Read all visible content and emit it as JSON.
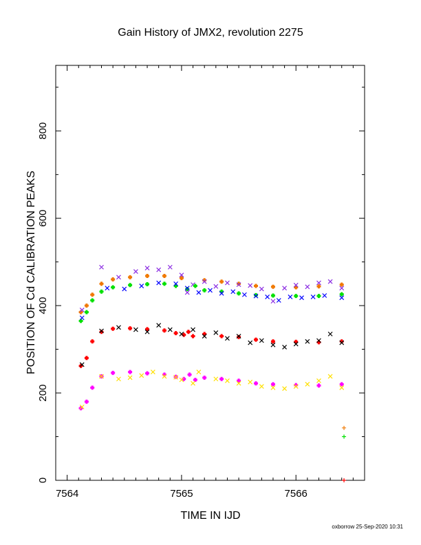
{
  "chart_data": {
    "type": "scatter",
    "title": "Gain History of JMX2, revolution 2275",
    "xlabel": "TIME IN IJD",
    "ylabel": "POSITION OF Cd CALIBRATION PEAKS",
    "xlim": [
      7563.9,
      7566.6
    ],
    "ylim": [
      0,
      950
    ],
    "x_ticks": [
      7564,
      7565,
      7566
    ],
    "x_tick_labels": [
      "7564",
      "7565",
      "7566"
    ],
    "y_ticks": [
      0,
      200,
      400,
      600,
      800
    ],
    "y_tick_labels": [
      "0",
      "200",
      "400",
      "600",
      "800"
    ],
    "grid": false,
    "legend": "none",
    "series": [
      {
        "color": "#f07800",
        "marker": "plus",
        "role": "fit",
        "x": [
          7564.12,
          7564.17,
          7564.22,
          7564.3,
          7564.4,
          7564.55,
          7564.7,
          7564.85,
          7565.0,
          7565.2,
          7565.35,
          7565.5,
          7565.65,
          7565.8,
          7566.0,
          7566.2,
          7566.4
        ],
        "y": [
          385,
          400,
          425,
          450,
          460,
          465,
          468,
          468,
          463,
          458,
          455,
          450,
          445,
          443,
          442,
          444,
          448
        ]
      },
      {
        "color": "#8a2be2",
        "marker": "x",
        "role": "raw",
        "x": [
          7564.13,
          7564.3,
          7564.45,
          7564.6,
          7564.7,
          7564.8,
          7564.9,
          7565.0,
          7565.05,
          7565.1,
          7565.2,
          7565.3,
          7565.4,
          7565.5,
          7565.6,
          7565.7,
          7565.8,
          7565.9,
          7566.0,
          7566.1,
          7566.2,
          7566.3,
          7566.4
        ],
        "y": [
          390,
          488,
          465,
          478,
          486,
          482,
          488,
          470,
          430,
          448,
          455,
          444,
          452,
          448,
          446,
          438,
          410,
          440,
          447,
          443,
          452,
          455,
          440
        ]
      },
      {
        "color": "#00e000",
        "marker": "plus",
        "role": "fit",
        "x": [
          7564.12,
          7564.17,
          7564.22,
          7564.3,
          7564.4,
          7564.55,
          7564.7,
          7564.85,
          7564.95,
          7565.05,
          7565.12,
          7565.2,
          7565.35,
          7565.5,
          7565.65,
          7565.8,
          7566.0,
          7566.2,
          7566.4
        ],
        "y": [
          365,
          385,
          412,
          432,
          442,
          447,
          449,
          450,
          445,
          438,
          445,
          435,
          432,
          428,
          424,
          423,
          422,
          422,
          426
        ]
      },
      {
        "color": "#0000ff",
        "marker": "x",
        "role": "raw",
        "x": [
          7564.13,
          7564.35,
          7564.5,
          7564.65,
          7564.8,
          7564.95,
          7565.05,
          7565.15,
          7565.25,
          7565.35,
          7565.45,
          7565.55,
          7565.65,
          7565.75,
          7565.85,
          7565.95,
          7566.05,
          7566.15,
          7566.25,
          7566.4
        ],
        "y": [
          372,
          440,
          438,
          445,
          452,
          450,
          440,
          430,
          435,
          428,
          432,
          425,
          422,
          420,
          412,
          420,
          418,
          420,
          423,
          418
        ]
      },
      {
        "color": "#ff0000",
        "marker": "plus",
        "role": "fit",
        "x": [
          7564.12,
          7564.17,
          7564.22,
          7564.3,
          7564.4,
          7564.55,
          7564.7,
          7564.85,
          7564.95,
          7565.02,
          7565.06,
          7565.1,
          7565.2,
          7565.35,
          7565.5,
          7565.65,
          7565.8,
          7566.0,
          7566.2,
          7566.4
        ],
        "y": [
          262,
          280,
          318,
          340,
          347,
          348,
          346,
          343,
          337,
          333,
          340,
          330,
          335,
          330,
          328,
          322,
          318,
          317,
          316,
          318
        ]
      },
      {
        "color": "#000000",
        "marker": "x",
        "role": "raw",
        "x": [
          7564.13,
          7564.3,
          7564.45,
          7564.6,
          7564.7,
          7564.8,
          7564.9,
          7565.0,
          7565.1,
          7565.2,
          7565.3,
          7565.4,
          7565.5,
          7565.6,
          7565.7,
          7565.8,
          7565.9,
          7566.0,
          7566.1,
          7566.2,
          7566.3,
          7566.4
        ],
        "y": [
          265,
          342,
          350,
          345,
          340,
          355,
          345,
          335,
          345,
          330,
          338,
          325,
          330,
          315,
          320,
          310,
          305,
          312,
          318,
          320,
          335,
          315
        ]
      },
      {
        "color": "#ff00ff",
        "marker": "plus",
        "role": "fit",
        "x": [
          7564.12,
          7564.17,
          7564.22,
          7564.3,
          7564.4,
          7564.55,
          7564.7,
          7564.85,
          7564.95,
          7565.02,
          7565.07,
          7565.12,
          7565.2,
          7565.35,
          7565.5,
          7565.65,
          7565.8,
          7566.0,
          7566.2,
          7566.4
        ],
        "y": [
          165,
          180,
          212,
          238,
          246,
          248,
          245,
          242,
          237,
          232,
          242,
          230,
          235,
          232,
          228,
          222,
          220,
          218,
          217,
          220
        ]
      },
      {
        "color": "#ffe000",
        "marker": "x",
        "role": "raw",
        "x": [
          7564.13,
          7564.3,
          7564.45,
          7564.55,
          7564.65,
          7564.75,
          7564.85,
          7564.95,
          7565.0,
          7565.1,
          7565.15,
          7565.3,
          7565.4,
          7565.5,
          7565.6,
          7565.7,
          7565.8,
          7565.9,
          7566.0,
          7566.1,
          7566.2,
          7566.3,
          7566.4
        ],
        "y": [
          168,
          238,
          232,
          235,
          240,
          248,
          238,
          236,
          230,
          222,
          248,
          232,
          228,
          222,
          225,
          215,
          212,
          210,
          215,
          220,
          228,
          238,
          212
        ]
      },
      {
        "color": "#f07800",
        "marker": "plus",
        "role": "extra",
        "x": [
          7566.42
        ],
        "y": [
          120
        ]
      },
      {
        "color": "#00e000",
        "marker": "plus",
        "role": "extra",
        "x": [
          7566.42
        ],
        "y": [
          100
        ]
      },
      {
        "color": "#ff0000",
        "marker": "plus",
        "role": "extra",
        "x": [
          7566.42
        ],
        "y": [
          0
        ]
      }
    ]
  },
  "footer": {
    "credit": "oxborrow 25-Sep-2020 10:31"
  }
}
